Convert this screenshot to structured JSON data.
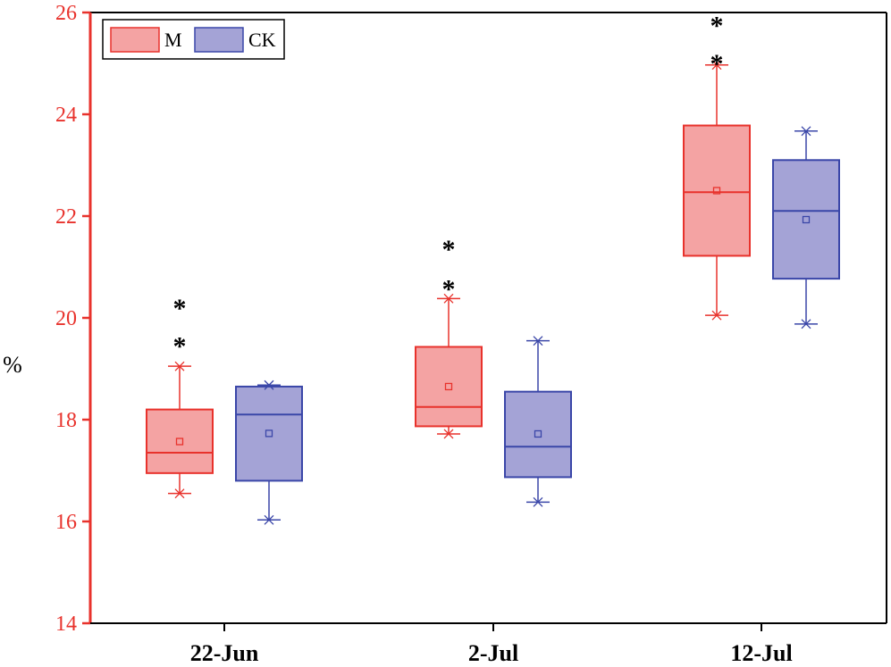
{
  "chart_data": {
    "type": "box",
    "title": "",
    "xlabel": "",
    "ylabel": "%",
    "ylim": [
      14,
      26
    ],
    "yticks": [
      14,
      16,
      18,
      20,
      22,
      24,
      26
    ],
    "categories": [
      "22-Jun",
      "2-Jul",
      "12-Jul"
    ],
    "legend": {
      "position": "top-left",
      "entries": [
        "M",
        "CK"
      ]
    },
    "colors": {
      "axis_y": "#e8322c",
      "axis_x": "#000000",
      "M_fill": "#f4a3a3",
      "M_stroke": "#e8322c",
      "CK_fill": "#a4a3d6",
      "CK_stroke": "#3a46a8",
      "star": "#000000"
    },
    "series": [
      {
        "name": "M",
        "boxes": [
          {
            "category": "22-Jun",
            "q1": 16.95,
            "median": 17.35,
            "q3": 18.2,
            "mean": 17.57,
            "whisker_low": 16.55,
            "whisker_high": 19.05,
            "min": 16.55,
            "max": 19.05
          },
          {
            "category": "2-Jul",
            "q1": 17.87,
            "median": 18.25,
            "q3": 19.43,
            "mean": 18.65,
            "whisker_low": 17.72,
            "whisker_high": 20.38,
            "min": 17.72,
            "max": 20.38
          },
          {
            "category": "12-Jul",
            "q1": 21.22,
            "median": 22.47,
            "q3": 23.78,
            "mean": 22.5,
            "whisker_low": 20.05,
            "whisker_high": 24.97,
            "min": 20.05,
            "max": 24.97
          }
        ]
      },
      {
        "name": "CK",
        "boxes": [
          {
            "category": "22-Jun",
            "q1": 16.8,
            "median": 18.1,
            "q3": 18.65,
            "mean": 17.73,
            "whisker_low": 16.03,
            "whisker_high": 18.68,
            "min": 16.03,
            "max": 18.68
          },
          {
            "category": "2-Jul",
            "q1": 16.87,
            "median": 17.47,
            "q3": 18.55,
            "mean": 17.72,
            "whisker_low": 16.38,
            "whisker_high": 19.55,
            "min": 16.38,
            "max": 19.55
          },
          {
            "category": "12-Jul",
            "q1": 20.77,
            "median": 22.1,
            "q3": 23.1,
            "mean": 21.93,
            "whisker_low": 19.88,
            "whisker_high": 23.67,
            "min": 19.88,
            "max": 23.67
          }
        ]
      }
    ],
    "annotations": [
      {
        "text": "*",
        "category": "22-Jun",
        "series": "M",
        "y": 20.25
      },
      {
        "text": "*",
        "category": "22-Jun",
        "series": "M",
        "y": 19.5
      },
      {
        "text": "*",
        "category": "2-Jul",
        "series": "M",
        "y": 21.4
      },
      {
        "text": "*",
        "category": "2-Jul",
        "series": "M",
        "y": 20.62
      },
      {
        "text": "*",
        "category": "12-Jul",
        "series": "M",
        "y": 25.8
      },
      {
        "text": "*",
        "category": "12-Jul",
        "series": "M",
        "y": 25.05
      }
    ]
  }
}
